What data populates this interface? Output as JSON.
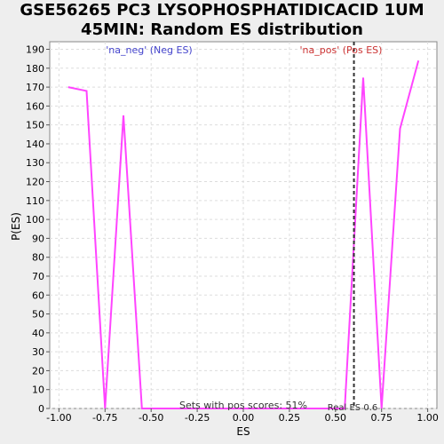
{
  "chart_data": {
    "type": "line",
    "title_line1": "GSE56265 PC3 LYSOPHOSPHATIDICACID 1UM",
    "title_line2": "45MIN: Random ES distribution",
    "xlabel": "ES",
    "ylabel": "P(ES)",
    "xlim": [
      -1.05,
      1.05
    ],
    "ylim": [
      0,
      194
    ],
    "x_ticks": [
      "-1.00",
      "-0.75",
      "-0.50",
      "-0.25",
      "0.00",
      "0.25",
      "0.50",
      "0.75",
      "1.00"
    ],
    "x_tick_values": [
      -1.0,
      -0.75,
      -0.5,
      -0.25,
      0.0,
      0.25,
      0.5,
      0.75,
      1.0
    ],
    "y_ticks": [
      0,
      10,
      20,
      30,
      40,
      50,
      60,
      70,
      80,
      90,
      100,
      110,
      120,
      130,
      140,
      150,
      160,
      170,
      180,
      190
    ],
    "grid": true,
    "series": [
      {
        "color": "#ff44ff",
        "x": [
          -0.95,
          -0.85,
          -0.75,
          -0.65,
          -0.55,
          0.55,
          0.65,
          0.75,
          0.85,
          0.95
        ],
        "y": [
          170,
          168,
          0,
          155,
          0,
          0,
          175,
          0,
          148,
          184
        ]
      }
    ],
    "real_es": 0.6,
    "real_es_label": "Real ES 0.6",
    "legend_neg": "'na_neg' (Neg ES)",
    "legend_pos": "'na_pos' (Pos ES)",
    "legend_neg_color": "#4444cc",
    "legend_pos_color": "#cc3333",
    "annotation": "Sets with pos scores: 51%"
  }
}
